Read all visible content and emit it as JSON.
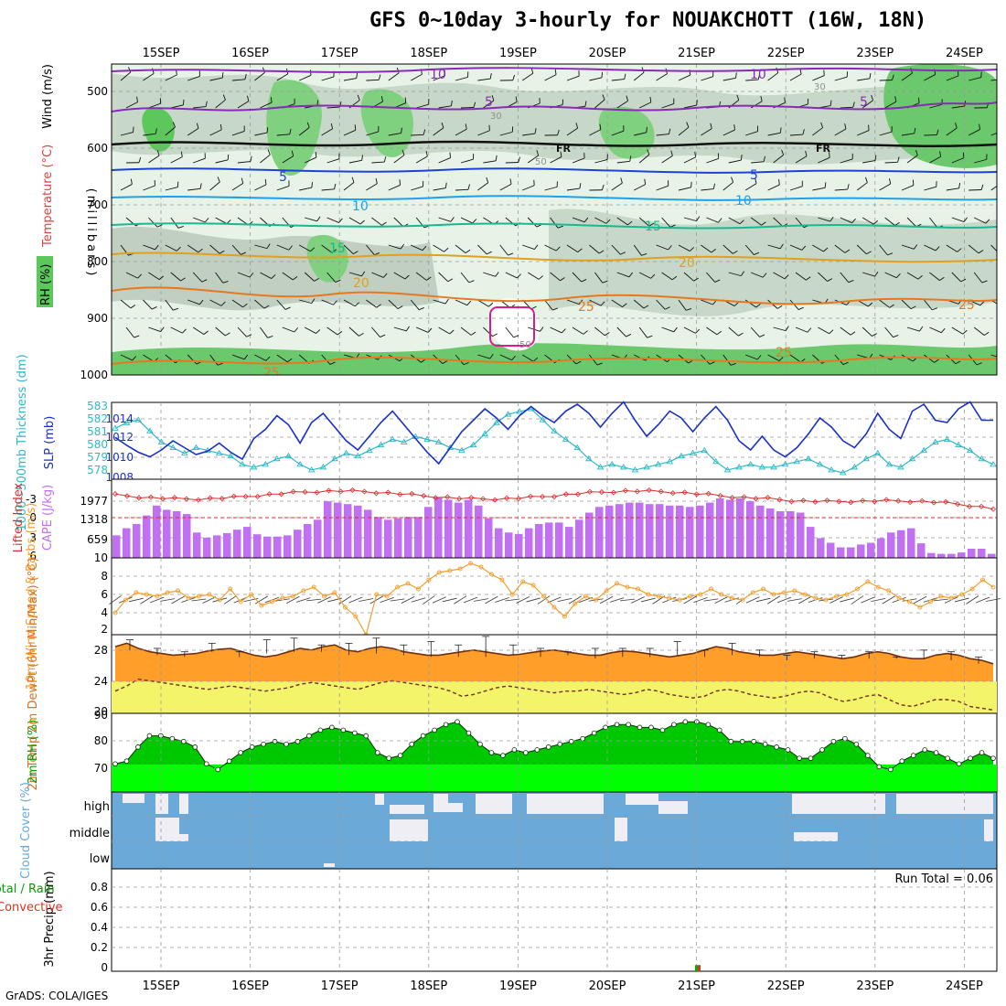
{
  "title": "GFS 0~10day 3-hourly for NOUAKCHOTT (16W, 18N)",
  "credit": "GrADS: COLA/IGES",
  "colors": {
    "rh_fill": "#00c800",
    "temp_fill": "#ff9f2a",
    "dew_fill": "#f4f46a",
    "cloud": "#6aa9d8",
    "cape_bar": "#c070f0",
    "lifted": "#d83030",
    "slp": "#1830c8",
    "thick": "#30b8c8",
    "wind10": "#f0a030"
  },
  "chart_data": {
    "type": "meteogram",
    "x_dates": [
      "15SEP",
      "16SEP",
      "17SEP",
      "18SEP",
      "19SEP",
      "20SEP",
      "21SEP",
      "22SEP",
      "23SEP",
      "24SEP"
    ],
    "panels": {
      "upper": {
        "ylabel": "(millibars)",
        "y_ticks": [
          "500",
          "600",
          "700",
          "800",
          "900",
          "1000"
        ],
        "legend": {
          "wind": "Wind (m/s)",
          "temp": "Temperature (°C)",
          "rh": "RH (%)"
        },
        "contour_labels": [
          "10",
          "10",
          "5",
          "5",
          "FR",
          "FR",
          "5",
          "5",
          "10",
          "10",
          "15",
          "15",
          "20",
          "20",
          "25",
          "25",
          "25",
          "25",
          "30",
          "30",
          "50",
          "50"
        ]
      },
      "slp": {
        "ylabel_left": "1000~500mb Thickness (dm)",
        "ylabel_right": "SLP (mb)",
        "left_ticks": [
          "583",
          "582",
          "581",
          "580",
          "579",
          "578"
        ],
        "right_ticks": [
          "1014",
          "1012",
          "1010",
          "1008"
        ],
        "slp_values": [
          1011.5,
          1010.8,
          1010.2,
          1009.8,
          1010.4,
          1011.2,
          1010.6,
          1010.0,
          1010.3,
          1011.0,
          1010.2,
          1009.6,
          1011.4,
          1012.2,
          1013.4,
          1012.6,
          1011.0,
          1012.8,
          1013.6,
          1012.4,
          1011.2,
          1010.4,
          1011.6,
          1012.8,
          1013.8,
          1012.6,
          1011.4,
          1010.2,
          1009.2,
          1010.6,
          1012.0,
          1013.0,
          1014.0,
          1013.2,
          1012.2,
          1013.4,
          1014.2,
          1013.4,
          1012.8,
          1013.8,
          1014.4,
          1013.6,
          1012.4,
          1013.6,
          1014.6,
          1013.0,
          1011.6,
          1012.6,
          1013.8,
          1013.2,
          1012.0,
          1013.2,
          1014.2,
          1013.0,
          1011.2,
          1010.4,
          1011.6,
          1010.4,
          1009.8,
          1010.6,
          1011.8,
          1013.2,
          1012.4,
          1011.2,
          1010.6,
          1011.8,
          1013.6,
          1012.2,
          1011.4,
          1013.8,
          1014.4,
          1013.0,
          1012.8,
          1014.0,
          1014.6,
          1013.0,
          1013.0
        ],
        "thick_values": [
          581.4,
          581.8,
          582.0,
          581.2,
          580.4,
          580.0,
          579.6,
          580.0,
          579.8,
          579.6,
          579.4,
          578.8,
          578.6,
          578.8,
          579.2,
          579.4,
          578.8,
          578.4,
          578.6,
          579.2,
          579.6,
          579.4,
          579.8,
          580.2,
          580.6,
          580.4,
          580.8,
          580.6,
          580.4,
          580.0,
          579.8,
          580.2,
          581.0,
          581.8,
          582.4,
          582.6,
          582.8,
          582.0,
          581.2,
          580.6,
          580.0,
          579.2,
          578.6,
          578.8,
          578.6,
          578.4,
          578.6,
          578.8,
          579.0,
          579.4,
          579.6,
          579.8,
          579.0,
          578.4,
          578.6,
          578.8,
          578.6,
          578.6,
          578.8,
          579.0,
          579.2,
          578.8,
          578.4,
          578.2,
          578.6,
          579.2,
          579.6,
          578.8,
          578.6,
          579.2,
          579.8,
          580.4,
          580.6,
          580.2,
          579.8,
          579.2,
          578.8
        ]
      },
      "cape": {
        "ylabel_left": "Lifted Index",
        "ylabel_right": "CAPE (J/kg)",
        "left_ticks": [
          "-3",
          "0",
          "3",
          "6"
        ],
        "right_ticks": [
          "1977",
          "1318",
          "659",
          "10"
        ],
        "cape_values": [
          800,
          1050,
          1200,
          1500,
          1850,
          1700,
          1650,
          1550,
          900,
          720,
          800,
          880,
          1000,
          1100,
          840,
          760,
          760,
          800,
          1000,
          1200,
          1350,
          2000,
          1950,
          1900,
          1850,
          1700,
          1450,
          1350,
          1400,
          1450,
          1450,
          1800,
          2150,
          2050,
          1950,
          2050,
          1850,
          1400,
          1050,
          900,
          850,
          1050,
          1200,
          1250,
          1250,
          1100,
          1350,
          1600,
          1800,
          1850,
          1900,
          1950,
          1950,
          1900,
          1900,
          1850,
          1850,
          1800,
          1850,
          1950,
          2100,
          2050,
          2100,
          2000,
          1850,
          1750,
          1650,
          1650,
          1600,
          1100,
          700,
          540,
          380,
          380,
          480,
          540,
          700,
          900,
          980,
          1050,
          520,
          180,
          150,
          150,
          200,
          330,
          330,
          150
        ]
      },
      "wind10": {
        "ylabel": "10m Wind Speed & Barbs (m/s)",
        "ticks": [
          "8",
          "6",
          "4",
          "2"
        ],
        "values": [
          4.0,
          5.4,
          6.2,
          6.0,
          5.8,
          6.2,
          6.4,
          5.6,
          5.8,
          6.0,
          5.4,
          6.6,
          5.2,
          6.0,
          4.8,
          5.2,
          5.6,
          5.8,
          6.4,
          6.8,
          5.8,
          6.2,
          4.6,
          3.6,
          1.6,
          6.0,
          5.8,
          6.8,
          7.2,
          6.6,
          7.6,
          8.4,
          8.6,
          8.8,
          9.4,
          9.0,
          8.2,
          7.6,
          6.0,
          7.4,
          7.0,
          5.8,
          4.6,
          3.6,
          5.0,
          5.8,
          5.4,
          6.4,
          7.2,
          6.8,
          6.6,
          6.0,
          5.8,
          5.6,
          5.4,
          5.8,
          6.0,
          6.6,
          6.0,
          5.6,
          5.4,
          6.2,
          6.6,
          6.0,
          6.2,
          6.4,
          6.0,
          5.6,
          5.4,
          5.8,
          6.0,
          6.6,
          7.4,
          6.8,
          6.4,
          5.6,
          5.2,
          4.6,
          5.2,
          5.8,
          5.6,
          6.0,
          6.6,
          7.6,
          6.8
        ]
      },
      "temp2m": {
        "ylabel": "2m Temp 2m DewPt (6hr Min/Max) (°C)",
        "ticks": [
          "28",
          "24",
          "20"
        ],
        "temp_values": [
          27.8,
          28.2,
          27.6,
          27.2,
          27.0,
          26.8,
          26.9,
          27.0,
          27.3,
          27.5,
          27.6,
          27.2,
          26.8,
          26.6,
          26.8,
          27.2,
          27.6,
          27.4,
          27.8,
          28.0,
          27.4,
          27.2,
          27.6,
          27.8,
          27.6,
          27.2,
          27.0,
          26.8,
          26.8,
          27.0,
          27.2,
          27.4,
          27.2,
          27.0,
          26.8,
          26.9,
          27.1,
          27.3,
          27.4,
          27.2,
          27.0,
          26.8,
          26.8,
          27.1,
          27.3,
          27.2,
          27.0,
          26.8,
          26.6,
          26.8,
          27.0,
          27.4,
          27.8,
          27.6,
          27.2,
          27.0,
          26.8,
          26.8,
          27.0,
          27.2,
          27.0,
          26.8,
          26.6,
          26.4,
          26.6,
          27.0,
          27.2,
          27.0,
          26.6,
          26.4,
          26.4,
          26.8,
          27.0,
          26.8,
          26.4,
          26.2,
          25.8
        ],
        "dew_values": [
          22.6,
          23.2,
          24.0,
          23.8,
          23.6,
          23.4,
          23.2,
          23.0,
          22.8,
          23.0,
          23.2,
          23.0,
          22.8,
          22.6,
          22.8,
          23.0,
          23.4,
          23.6,
          23.4,
          23.2,
          23.0,
          22.8,
          23.2,
          23.6,
          23.8,
          23.6,
          23.4,
          23.2,
          23.0,
          22.6,
          22.0,
          22.2,
          22.6,
          23.0,
          23.2,
          23.0,
          22.8,
          22.6,
          22.4,
          22.6,
          22.6,
          22.8,
          22.6,
          22.4,
          22.2,
          22.4,
          22.8,
          22.6,
          22.2,
          22.0,
          21.8,
          22.0,
          22.6,
          22.8,
          22.6,
          22.2,
          22.0,
          21.8,
          22.0,
          22.4,
          22.6,
          22.4,
          21.8,
          21.4,
          21.6,
          22.0,
          22.2,
          21.6,
          21.0,
          20.8,
          21.2,
          21.6,
          21.6,
          21.4,
          20.8,
          20.6,
          20.4
        ],
        "minmax_ranges": [
          [
            27.4,
            28.6
          ],
          [
            26.8,
            27.6
          ],
          [
            26.6,
            27.2
          ],
          [
            27.2,
            28.2
          ],
          [
            26.6,
            27.2
          ],
          [
            27.0,
            28.6
          ],
          [
            27.2,
            28.8
          ],
          [
            27.2,
            28.0
          ],
          [
            26.8,
            28.2
          ],
          [
            27.0,
            28.8
          ],
          [
            26.8,
            28.0
          ],
          [
            26.6,
            28.4
          ],
          [
            26.6,
            28.0
          ],
          [
            26.6,
            29.0
          ],
          [
            26.8,
            28.0
          ],
          [
            26.6,
            27.6
          ],
          [
            26.8,
            27.2
          ],
          [
            26.4,
            27.6
          ],
          [
            26.6,
            27.6
          ],
          [
            26.6,
            27.6
          ],
          [
            26.8,
            28.4
          ],
          [
            26.6,
            27.4
          ],
          [
            26.8,
            28.2
          ],
          [
            26.6,
            27.4
          ],
          [
            26.2,
            26.8
          ],
          [
            26.4,
            27.2
          ],
          [
            26.4,
            26.8
          ],
          [
            26.4,
            27.2
          ],
          [
            26.4,
            26.6
          ],
          [
            26.4,
            27.4
          ],
          [
            26.2,
            27.2
          ],
          [
            25.8,
            26.6
          ]
        ]
      },
      "rh2m": {
        "ylabel": "2m RH (%)",
        "ticks": [
          "90",
          "80",
          "70"
        ],
        "values": [
          72,
          73,
          78,
          82,
          82,
          81,
          80,
          78,
          72,
          70,
          73,
          76,
          78,
          79,
          80,
          79,
          80,
          82,
          84,
          85,
          84,
          83,
          82,
          76,
          74,
          75,
          79,
          82,
          84,
          86,
          87,
          83,
          79,
          76,
          75,
          77,
          76,
          77,
          78,
          79,
          80,
          81,
          83,
          85,
          86,
          86,
          85,
          85,
          84,
          86,
          87,
          87,
          86,
          84,
          80,
          80,
          80,
          79,
          78,
          77,
          74,
          74,
          77,
          80,
          81,
          79,
          75,
          71,
          70,
          73,
          75,
          77,
          76,
          74,
          72,
          74,
          76,
          74
        ]
      },
      "cloud": {
        "ylabel": "Cloud Cover (%)",
        "levels": [
          "high",
          "middle",
          "low"
        ]
      },
      "precip": {
        "ylabel_main": "3hr Precip (mm)",
        "ylabel_side_1": "Total / Rain",
        "ylabel_side_2": "Convective",
        "ticks": [
          "0.8",
          "0.6",
          "0.4",
          "0.2",
          "0"
        ],
        "run_total": "Run Total = 0.06",
        "event_value": 0.06
      }
    }
  }
}
